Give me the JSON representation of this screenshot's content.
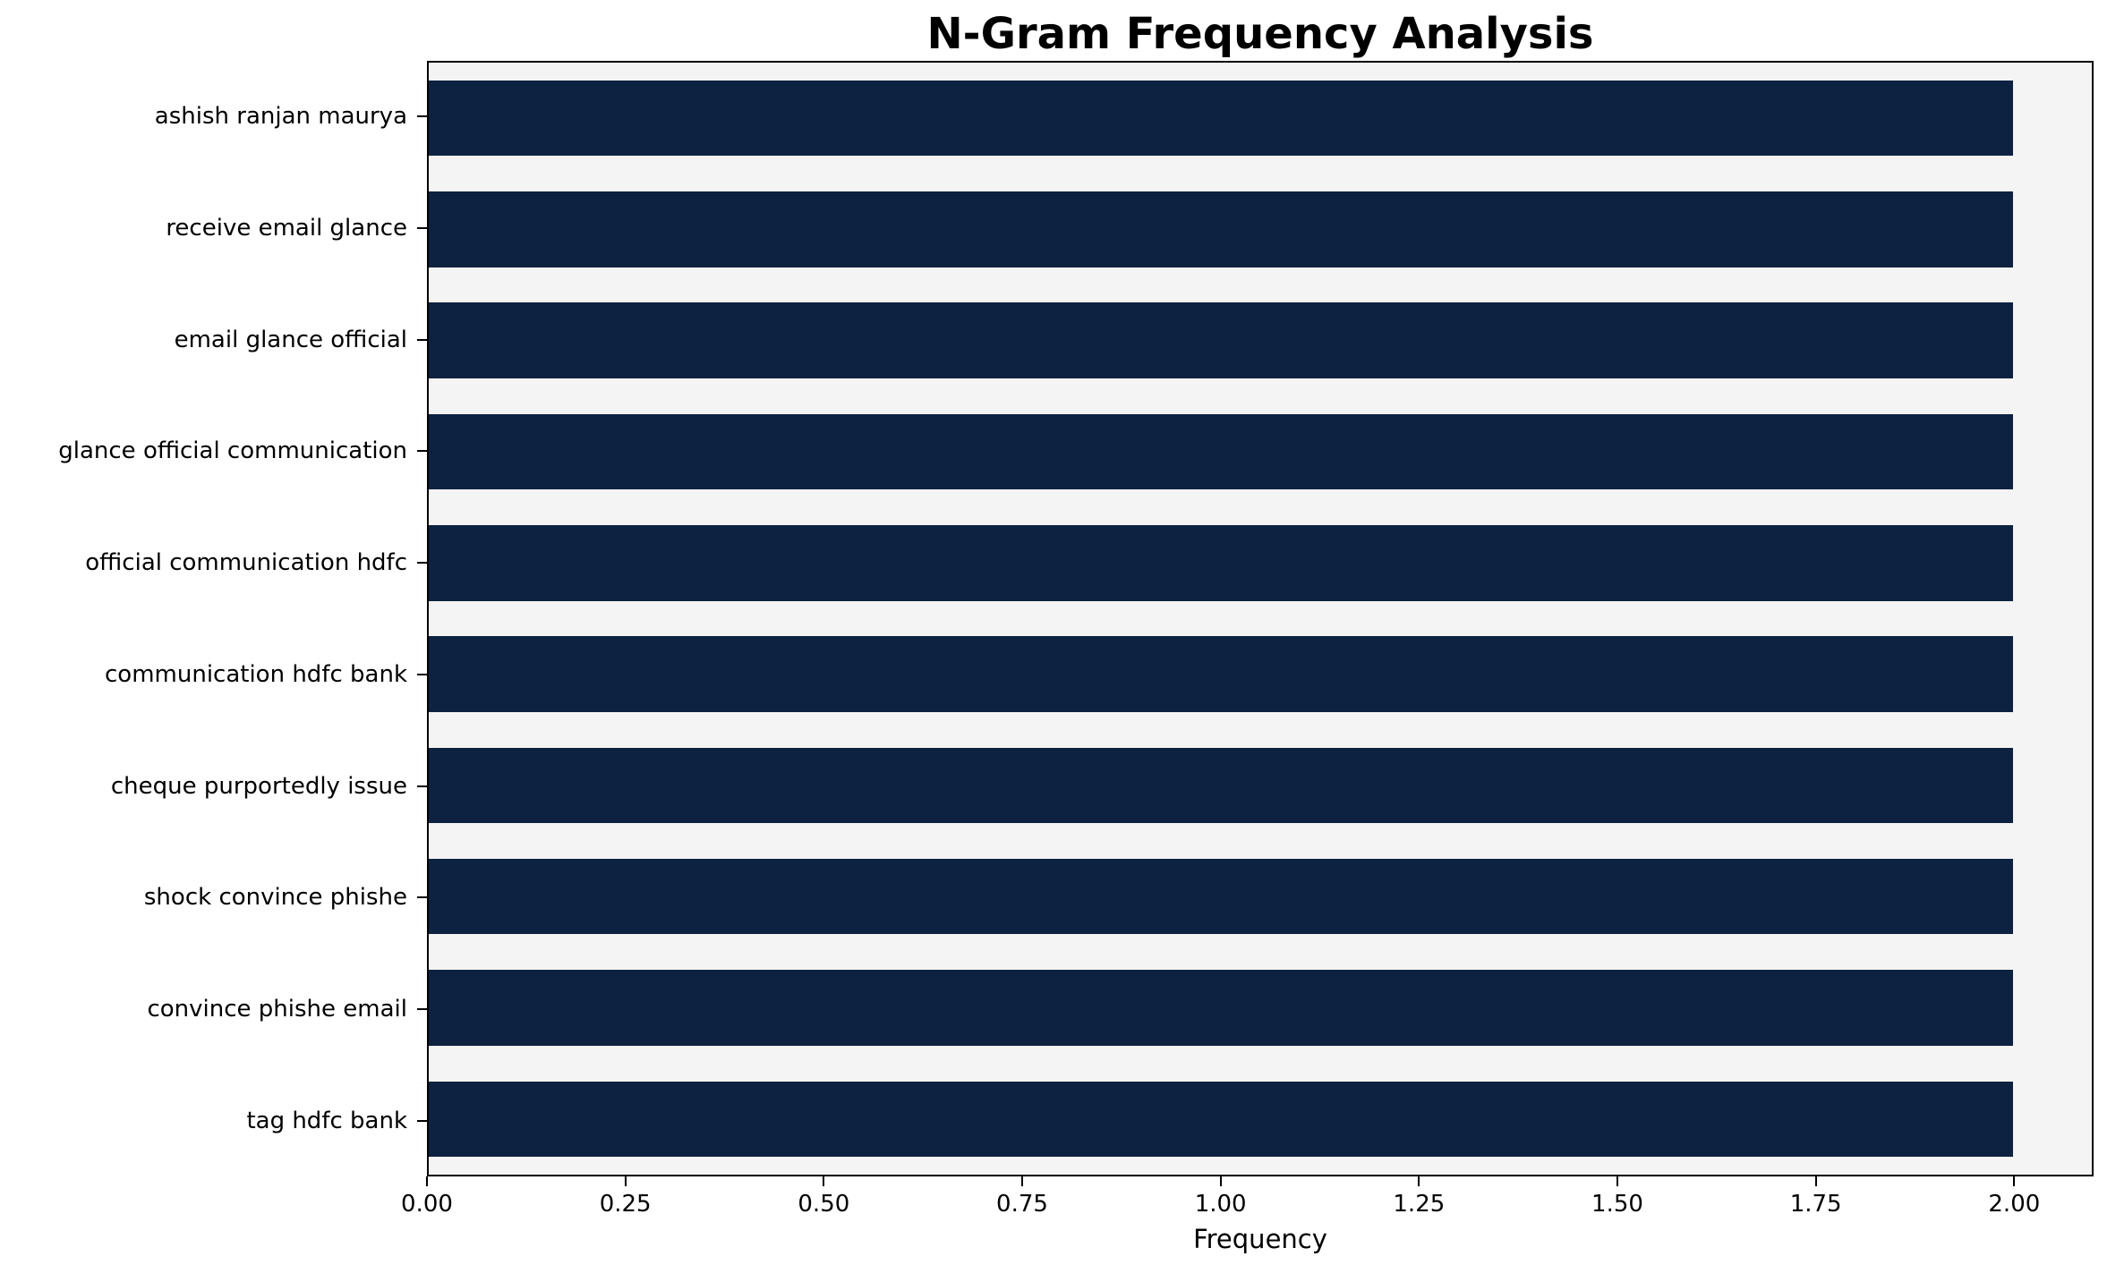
{
  "title": "N-Gram Frequency Analysis",
  "chart_data": {
    "type": "bar",
    "orientation": "horizontal",
    "title": "N-Gram Frequency Analysis",
    "xlabel": "Frequency",
    "ylabel": "",
    "categories": [
      "ashish ranjan maurya",
      "receive email glance",
      "email glance official",
      "glance official communication",
      "official communication hdfc",
      "communication hdfc bank",
      "cheque purportedly issue",
      "shock convince phishe",
      "convince phishe email",
      "tag hdfc bank"
    ],
    "values": [
      2,
      2,
      2,
      2,
      2,
      2,
      2,
      2,
      2,
      2
    ],
    "xlim": [
      0,
      2.1
    ],
    "xticks": [
      0.0,
      0.25,
      0.5,
      0.75,
      1.0,
      1.25,
      1.5,
      1.75,
      2.0
    ],
    "xtick_labels": [
      "0.00",
      "0.25",
      "0.50",
      "0.75",
      "1.00",
      "1.25",
      "1.50",
      "1.75",
      "2.00"
    ],
    "grid": false,
    "legend": "none",
    "bar_color": "#0d2240",
    "plot_bg": "#f4f4f4",
    "figure_bg": "#ffffff"
  }
}
